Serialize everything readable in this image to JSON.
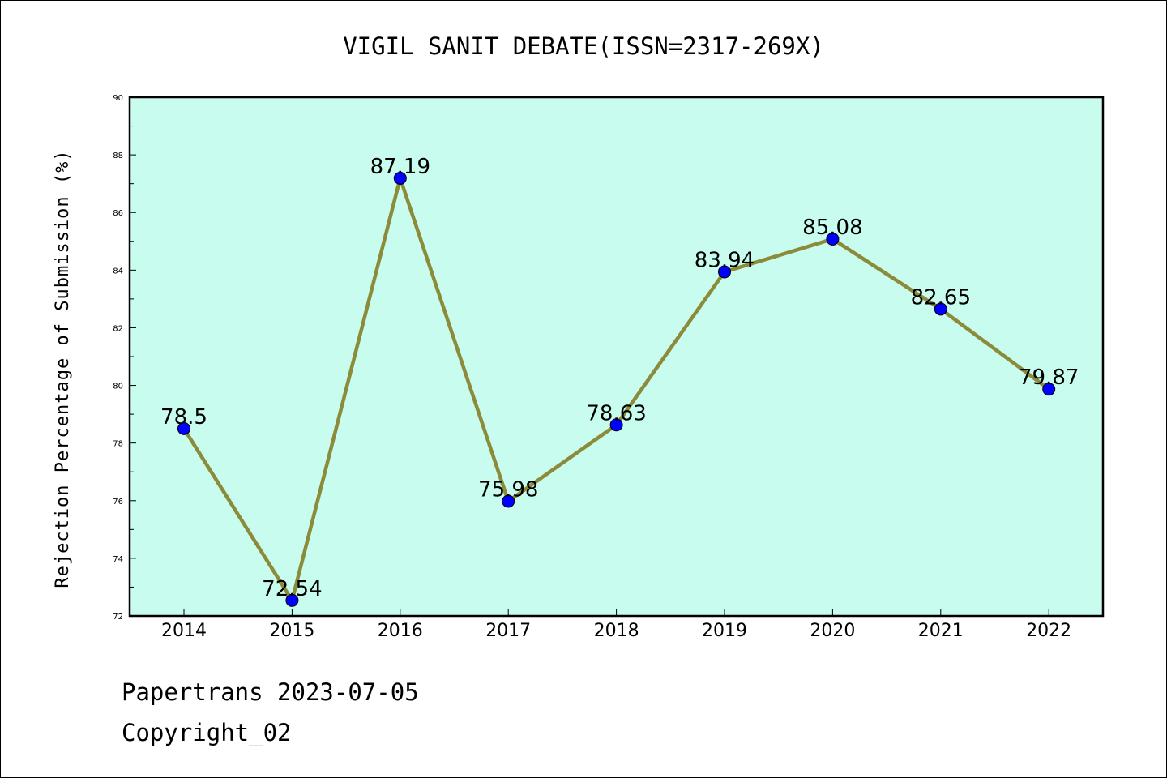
{
  "chart_data": {
    "type": "line",
    "title": "VIGIL SANIT DEBATE(ISSN=2317-269X)",
    "xlabel": "",
    "ylabel": "Rejection Percentage of Submission (%)",
    "categories": [
      "2014",
      "2015",
      "2016",
      "2017",
      "2018",
      "2019",
      "2020",
      "2021",
      "2022"
    ],
    "series": [
      {
        "values": [
          78.5,
          72.54,
          87.19,
          75.98,
          78.63,
          83.94,
          85.08,
          82.65,
          79.87
        ],
        "data_labels": [
          "78.5",
          "72.54",
          "87.19",
          "75.98",
          "78.63",
          "83.94",
          "85.08",
          "82.65",
          "79.87"
        ],
        "line_color": "#8B8B3A",
        "marker_color": "#0000FF"
      }
    ],
    "ylim": [
      72,
      90
    ],
    "yticks": [
      "72",
      "74",
      "76",
      "78",
      "80",
      "82",
      "84",
      "86",
      "88",
      "90"
    ],
    "plot_background": "#C8FCEE",
    "grid": false,
    "legend": "none"
  },
  "footer": {
    "line1": "Papertrans 2023-07-05",
    "line2": "Copyright_02"
  }
}
